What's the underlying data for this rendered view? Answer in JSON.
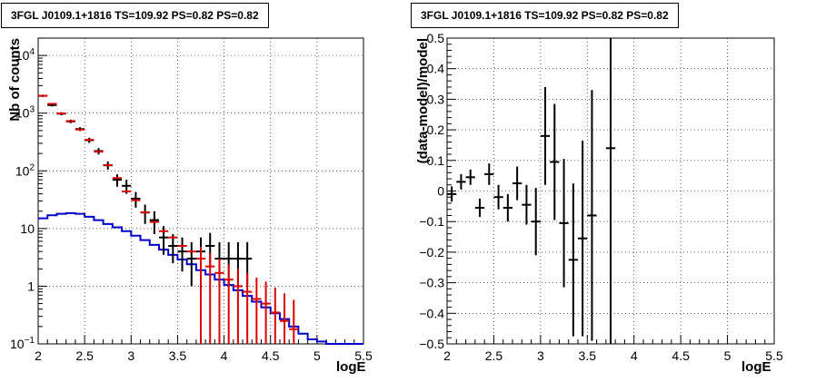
{
  "chart_data": [
    {
      "type": "scatter",
      "title": "3FGL J0109.1+1816 TS=109.92 PS=0.82 PS=0.82",
      "xlabel": "logE",
      "ylabel": "Nb of counts",
      "xlim": [
        2,
        5.5
      ],
      "ylim": [
        0.1,
        20000
      ],
      "yscale": "log",
      "grid": true,
      "x_ticks": [
        "2",
        "2.5",
        "3",
        "3.5",
        "4",
        "4.5",
        "5",
        "5.5"
      ],
      "y_ticks": [
        "10^-1",
        "1",
        "10",
        "10^2",
        "10^3",
        "10^4"
      ],
      "colors": {
        "data": "#000000",
        "model": "#dd0000",
        "source": "#0000cc"
      },
      "series": [
        {
          "key": "data",
          "x": [
            2.05,
            2.15,
            2.25,
            2.35,
            2.45,
            2.55,
            2.65,
            2.75,
            2.85,
            2.95,
            3.05,
            3.15,
            3.25,
            3.35,
            3.45,
            3.55,
            3.65,
            3.75,
            3.85,
            3.95,
            4.05,
            4.15,
            4.25
          ],
          "y": [
            2000,
            1380,
            980,
            720,
            530,
            340,
            220,
            125,
            70,
            55,
            33,
            19,
            14,
            7,
            5,
            4,
            3,
            4,
            5,
            3,
            3,
            3,
            3
          ],
          "yerr_low": [
            90,
            75,
            60,
            50,
            40,
            35,
            28,
            20,
            17,
            15,
            10,
            7,
            6,
            3.5,
            2.5,
            2.2,
            2,
            2.3,
            2.7,
            2,
            2,
            2,
            2
          ],
          "yerr_high": [
            90,
            75,
            60,
            50,
            40,
            35,
            28,
            20,
            17,
            15,
            10,
            7,
            6,
            4,
            3,
            3,
            2.8,
            3,
            3.4,
            2.8,
            2.8,
            2.8,
            2.8
          ]
        },
        {
          "key": "model",
          "x": [
            2.05,
            2.15,
            2.25,
            2.35,
            2.45,
            2.55,
            2.65,
            2.75,
            2.85,
            2.95,
            3.05,
            3.15,
            3.25,
            3.35,
            3.45,
            3.55,
            3.65,
            3.75,
            3.85,
            3.95,
            4.05,
            4.15,
            4.25,
            4.35,
            4.45,
            4.55,
            4.65,
            4.75
          ],
          "y": [
            2000,
            1450,
            990,
            730,
            520,
            345,
            215,
            125,
            75,
            44,
            31,
            19,
            13,
            9,
            7,
            5,
            4,
            3,
            2.2,
            1.7,
            1.3,
            1,
            0.8,
            0.6,
            0.5,
            0.35,
            0.25,
            0.18
          ],
          "yerr_low": [
            0,
            0,
            0,
            0,
            0,
            0,
            0,
            0,
            0,
            0,
            0,
            0,
            0,
            0,
            0,
            0,
            0,
            2.9,
            2.1,
            1.6,
            1.2,
            0.95,
            0.75,
            0.55,
            0.46,
            0.32,
            0.23,
            0.17
          ],
          "yerr_high": [
            0,
            0,
            0,
            0,
            0,
            0,
            0,
            0,
            0,
            0,
            0,
            0,
            0,
            0,
            0,
            0,
            0,
            1.8,
            1.5,
            1.3,
            1.1,
            1,
            0.9,
            0.8,
            0.7,
            0.6,
            0.5,
            0.4
          ]
        },
        {
          "key": "source",
          "type": "step",
          "x": [
            2.05,
            2.15,
            2.25,
            2.35,
            2.45,
            2.55,
            2.65,
            2.75,
            2.85,
            2.95,
            3.05,
            3.15,
            3.25,
            3.35,
            3.45,
            3.55,
            3.65,
            3.75,
            3.85,
            3.95,
            4.05,
            4.15,
            4.25,
            4.35,
            4.45,
            4.55,
            4.65,
            4.75,
            4.85,
            4.95,
            5.05,
            5.15,
            5.25,
            5.35,
            5.45
          ],
          "y": [
            15,
            17,
            18,
            18.5,
            18,
            16,
            14,
            12,
            10.5,
            9,
            7.5,
            6.3,
            5.2,
            4.3,
            3.5,
            2.9,
            2.4,
            1.9,
            1.6,
            1.3,
            1.05,
            0.85,
            0.68,
            0.54,
            0.43,
            0.34,
            0.27,
            0.2,
            0.15,
            0.12,
            0.11,
            0.1,
            0.1,
            0.1,
            0.1
          ]
        }
      ]
    },
    {
      "type": "scatter",
      "title": "3FGL J0109.1+1816 TS=109.92 PS=0.82 PS=0.82",
      "xlabel": "logE",
      "ylabel": "(data-model)/model",
      "xlim": [
        2,
        5.5
      ],
      "ylim": [
        -0.5,
        0.5
      ],
      "grid": true,
      "x_ticks": [
        "2",
        "2.5",
        "3",
        "3.5",
        "4",
        "4.5",
        "5",
        "5.5"
      ],
      "y_ticks": [
        "−0.5",
        "−0.4",
        "−0.3",
        "−0.2",
        "−0.1",
        "0",
        "0.1",
        "0.2",
        "0.3",
        "0.4",
        "0.5"
      ],
      "color": "#000000",
      "series": [
        {
          "x": [
            2.05,
            2.15,
            2.25,
            2.35,
            2.45,
            2.55,
            2.65,
            2.75,
            2.85,
            2.95,
            3.05,
            3.15,
            3.25,
            3.35,
            3.45,
            3.55,
            3.65,
            3.75
          ],
          "y": [
            -0.01,
            0.03,
            0.045,
            -0.055,
            0.055,
            -0.02,
            -0.055,
            0.025,
            -0.045,
            -0.1,
            0.18,
            0.095,
            -0.105,
            -0.225,
            -0.155,
            -0.08,
            0.0,
            0.14
          ],
          "yerr": [
            0.025,
            0.025,
            0.025,
            0.03,
            0.035,
            0.04,
            0.045,
            0.055,
            0.065,
            0.11,
            0.16,
            0.19,
            0.21,
            0.25,
            0.32,
            0.41,
            0.0,
            0.65
          ]
        }
      ]
    }
  ]
}
